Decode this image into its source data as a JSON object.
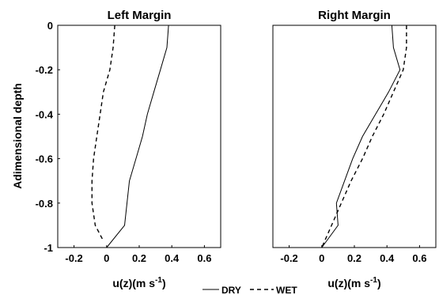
{
  "chart_data": [
    {
      "type": "line",
      "title": "Left Margin",
      "xlabel": "u(z)(m s",
      "xlabel_sup": "-1",
      "xlabel_close": ")",
      "ylabel": "Adimensional depth",
      "xlim": [
        -0.3,
        0.7
      ],
      "ylim": [
        -1,
        0
      ],
      "xticks": [
        "-0.2",
        "0",
        "0.2",
        "0.4",
        "0.6"
      ],
      "yticks": [
        "0",
        "-0.2",
        "-0.4",
        "-0.6",
        "-0.8",
        "-1"
      ],
      "series": [
        {
          "name": "DRY",
          "style": "solid",
          "x": [
            0.38,
            0.37,
            0.33,
            0.29,
            0.25,
            0.22,
            0.18,
            0.14,
            0.11,
            0.0
          ],
          "y": [
            0,
            -0.1,
            -0.2,
            -0.3,
            -0.4,
            -0.5,
            -0.6,
            -0.7,
            -0.9,
            -1.0
          ]
        },
        {
          "name": "WET",
          "style": "dashed",
          "x": [
            0.05,
            0.04,
            0.02,
            -0.02,
            -0.04,
            -0.06,
            -0.08,
            -0.09,
            -0.09,
            -0.07,
            -0.02
          ],
          "y": [
            0,
            -0.1,
            -0.2,
            -0.3,
            -0.4,
            -0.5,
            -0.6,
            -0.7,
            -0.8,
            -0.9,
            -0.97
          ]
        }
      ]
    },
    {
      "type": "line",
      "title": "Right Margin",
      "xlabel": "u(z)(m s",
      "xlabel_sup": "-1",
      "xlabel_close": ")",
      "xlim": [
        -0.3,
        0.7
      ],
      "ylim": [
        -1,
        0
      ],
      "xticks": [
        "-0.2",
        "0",
        "0.2",
        "0.4",
        "0.6"
      ],
      "series": [
        {
          "name": "DRY",
          "style": "solid",
          "x": [
            0.43,
            0.44,
            0.48,
            0.41,
            0.33,
            0.25,
            0.19,
            0.14,
            0.09,
            0.1,
            0.0
          ],
          "y": [
            0,
            -0.1,
            -0.2,
            -0.3,
            -0.4,
            -0.5,
            -0.6,
            -0.7,
            -0.8,
            -0.9,
            -1.0
          ]
        },
        {
          "name": "WET",
          "style": "dashed",
          "x": [
            0.52,
            0.52,
            0.5,
            0.44,
            0.38,
            0.31,
            0.25,
            0.18,
            0.12,
            0.06,
            0.0
          ],
          "y": [
            0,
            -0.1,
            -0.2,
            -0.3,
            -0.4,
            -0.5,
            -0.6,
            -0.7,
            -0.8,
            -0.9,
            -1.0
          ]
        }
      ]
    }
  ],
  "legend": [
    {
      "label": "DRY",
      "style": "solid"
    },
    {
      "label": "WET",
      "style": "dashed"
    }
  ]
}
